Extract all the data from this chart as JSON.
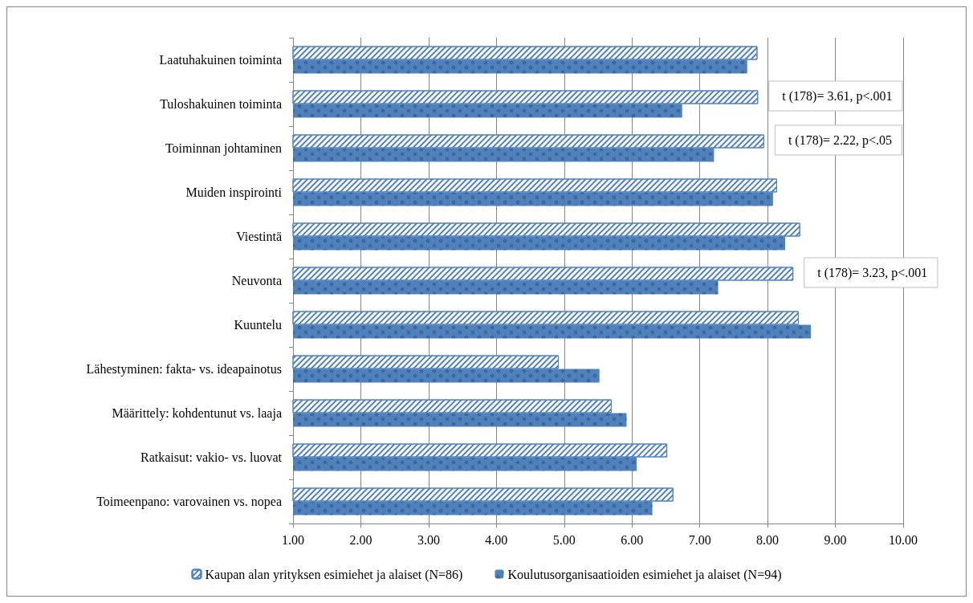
{
  "chart_data": {
    "type": "bar",
    "orientation": "horizontal",
    "categories": [
      "Laatuhakuinen toiminta",
      "Tuloshakuinen toiminta",
      "Toiminnan johtaminen",
      "Muiden inspirointi",
      "Viestintä",
      "Neuvonta",
      "Kuuntelu",
      "Lähestyminen: fakta- vs. ideapainotus",
      "Määrittely: kohdentunut vs. laaja",
      "Ratkaisut: vakio- vs. luovat",
      "Toimeenpano: varovainen vs. nopea"
    ],
    "series": [
      {
        "name": "Kaupan alan yrityksen esimiehet ja alaiset (N=86)",
        "color": "#4f81bd",
        "values": [
          7.85,
          7.86,
          7.95,
          8.14,
          8.48,
          8.38,
          8.46,
          4.92,
          5.7,
          6.52,
          6.61
        ]
      },
      {
        "name": "Koulutusorganisaatioiden esimiehet ja alaiset (N=94)",
        "color": "#4f81bd",
        "values": [
          7.7,
          6.74,
          7.21,
          8.08,
          8.26,
          7.27,
          8.64,
          5.52,
          5.92,
          6.07,
          6.3
        ]
      }
    ],
    "xlim": [
      1,
      10
    ],
    "xticks": [
      {
        "value": 1,
        "label": "1.00"
      },
      {
        "value": 2,
        "label": "2.00"
      },
      {
        "value": 3,
        "label": "3.00"
      },
      {
        "value": 4,
        "label": "4.00"
      },
      {
        "value": 5,
        "label": "5.00"
      },
      {
        "value": 6,
        "label": "6.00"
      },
      {
        "value": 7,
        "label": "7.00"
      },
      {
        "value": 8,
        "label": "8.00"
      },
      {
        "value": 9,
        "label": "9.00"
      },
      {
        "value": 10,
        "label": "10.00"
      }
    ],
    "grid": "x",
    "legend": "bottom",
    "annotations": [
      {
        "text": "t (178)= 3.61, p<.001",
        "x": 7.86,
        "y": "Tuloshakuinen toiminta"
      },
      {
        "text": "t (178)= 2.22, p<.05",
        "x": 7.95,
        "y": "Toiminnan johtaminen"
      },
      {
        "text": "t (178)= 3.23, p<.001",
        "x": 8.38,
        "y": "Neuvonta"
      }
    ]
  }
}
